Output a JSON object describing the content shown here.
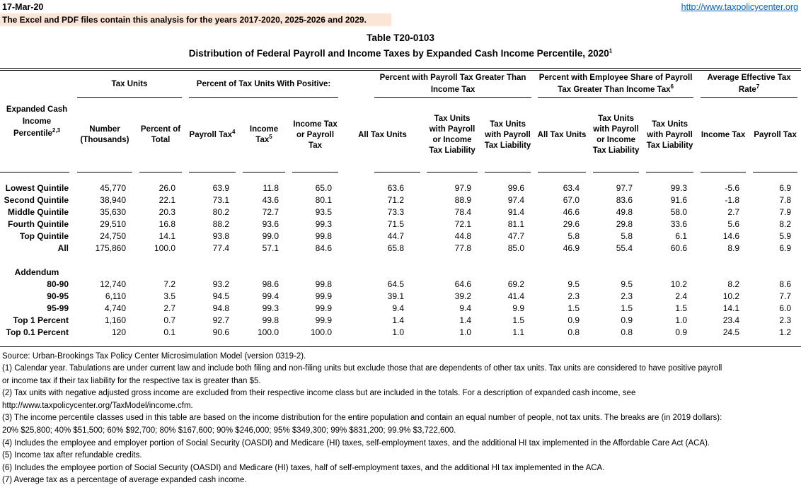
{
  "header": {
    "date": "17-Mar-20",
    "site_url": "http://www.taxpolicycenter.org",
    "banner_note": "The Excel and PDF files contain this analysis for the years 2017-2020, 2025-2026 and 2029.",
    "banner_bg_color": "#FBE5D6",
    "link_color": "#0563C1"
  },
  "title": {
    "line1": "Table T20-0103",
    "line2": "Distribution of Federal Payroll and Income Taxes by Expanded Cash Income Percentile, 2020",
    "line2_sup": "1"
  },
  "table": {
    "row_header": {
      "label": "Expanded Cash Income Percentile",
      "sup": "2,3"
    },
    "groups": [
      {
        "label": "Tax Units",
        "sup": ""
      },
      {
        "label": "Percent of Tax Units With Positive:",
        "sup": ""
      },
      {
        "label": "Percent with Payroll Tax Greater Than Income Tax",
        "sup": ""
      },
      {
        "label": "Percent with Employee Share of Payroll Tax Greater Than Income Tax",
        "sup": "6"
      },
      {
        "label": "Average Effective Tax Rate",
        "sup": "7"
      }
    ],
    "columns": [
      {
        "label": "Number (Thousands)",
        "sup": ""
      },
      {
        "label": "Percent of Total",
        "sup": ""
      },
      {
        "label": "Payroll Tax",
        "sup": "4"
      },
      {
        "label": "Income Tax",
        "sup": "5"
      },
      {
        "label": "Income Tax or Payroll Tax",
        "sup": ""
      },
      {
        "label": "All Tax Units",
        "sup": ""
      },
      {
        "label": "Tax Units with Payroll or Income Tax Liability",
        "sup": ""
      },
      {
        "label": "Tax Units with Payroll Tax Liability",
        "sup": ""
      },
      {
        "label": "All Tax Units",
        "sup": ""
      },
      {
        "label": "Tax Units with Payroll or Income Tax Liability",
        "sup": ""
      },
      {
        "label": "Tax Units with Payroll Tax Liability",
        "sup": ""
      },
      {
        "label": "Income Tax",
        "sup": ""
      },
      {
        "label": "Payroll Tax",
        "sup": ""
      }
    ],
    "main_rows": [
      {
        "label": "Lowest Quintile",
        "values": [
          "45,770",
          "26.0",
          "63.9",
          "11.8",
          "65.0",
          "63.6",
          "97.9",
          "99.6",
          "63.4",
          "97.7",
          "99.3",
          "-5.6",
          "6.9"
        ]
      },
      {
        "label": "Second Quintile",
        "values": [
          "38,940",
          "22.1",
          "73.1",
          "43.6",
          "80.1",
          "71.2",
          "88.9",
          "97.4",
          "67.0",
          "83.6",
          "91.6",
          "-1.8",
          "7.8"
        ]
      },
      {
        "label": "Middle Quintile",
        "values": [
          "35,630",
          "20.3",
          "80.2",
          "72.7",
          "93.5",
          "73.3",
          "78.4",
          "91.4",
          "46.6",
          "49.8",
          "58.0",
          "2.7",
          "7.9"
        ]
      },
      {
        "label": "Fourth Quintile",
        "values": [
          "29,510",
          "16.8",
          "88.2",
          "93.6",
          "99.3",
          "71.5",
          "72.1",
          "81.1",
          "29.6",
          "29.8",
          "33.6",
          "5.6",
          "8.2"
        ]
      },
      {
        "label": "Top Quintile",
        "values": [
          "24,750",
          "14.1",
          "93.8",
          "99.0",
          "99.8",
          "44.7",
          "44.8",
          "47.7",
          "5.8",
          "5.8",
          "6.1",
          "14.6",
          "5.9"
        ]
      },
      {
        "label": "All",
        "values": [
          "175,860",
          "100.0",
          "77.4",
          "57.1",
          "84.6",
          "65.8",
          "77.8",
          "85.0",
          "46.9",
          "55.4",
          "60.6",
          "8.9",
          "6.9"
        ]
      }
    ],
    "addendum_label": "Addendum",
    "addendum_rows": [
      {
        "label": "80-90",
        "values": [
          "12,740",
          "7.2",
          "93.2",
          "98.6",
          "99.8",
          "64.5",
          "64.6",
          "69.2",
          "9.5",
          "9.5",
          "10.2",
          "8.2",
          "8.6"
        ]
      },
      {
        "label": "90-95",
        "values": [
          "6,110",
          "3.5",
          "94.5",
          "99.4",
          "99.9",
          "39.1",
          "39.2",
          "41.4",
          "2.3",
          "2.3",
          "2.4",
          "10.2",
          "7.7"
        ]
      },
      {
        "label": "95-99",
        "values": [
          "4,740",
          "2.7",
          "94.8",
          "99.3",
          "99.9",
          "9.4",
          "9.4",
          "9.9",
          "1.5",
          "1.5",
          "1.5",
          "14.1",
          "6.0"
        ]
      },
      {
        "label": "Top 1 Percent",
        "values": [
          "1,160",
          "0.7",
          "92.7",
          "99.8",
          "99.9",
          "1.4",
          "1.4",
          "1.5",
          "0.9",
          "0.9",
          "1.0",
          "23.4",
          "2.3"
        ]
      },
      {
        "label": "Top 0.1 Percent",
        "values": [
          "120",
          "0.1",
          "90.6",
          "100.0",
          "100.0",
          "1.0",
          "1.0",
          "1.1",
          "0.8",
          "0.8",
          "0.9",
          "24.5",
          "1.2"
        ]
      }
    ]
  },
  "footnotes": [
    "Source: Urban-Brookings Tax Policy Center Microsimulation Model (version 0319-2).",
    "(1) Calendar year. Tabulations are under current law and include both filing and non-filing units but exclude those that are dependents of other tax units.  Tax units are considered to have positive payroll",
    "or income tax if their tax liability for the respective tax is greater than $5.",
    "(2) Tax units with negative adjusted gross income are excluded from their respective income class but are included in the totals. For a description of expanded cash income, see",
    "http://www.taxpolicycenter.org/TaxModel/income.cfm.",
    "(3) The income percentile classes used in this table are based on the income distribution for the entire population and contain an equal number of people, not tax units. The breaks are (in 2019 dollars):",
    "20% $25,800; 40% $51,500; 60% $92,700; 80% $167,600; 90% $246,000; 95% $349,300; 99% $831,200; 99.9% $3,722,600.",
    "(4) Includes the employee and employer portion of Social Security (OASDI) and Medicare (HI) taxes, self-employment taxes, and the additional HI tax implemented in the Affordable Care Act (ACA).",
    "(5) Income tax after refundable credits.",
    "(6) Includes the employee portion of Social Security (OASDI) and Medicare (HI) taxes, half of self-employment taxes, and the additional HI tax implemented in the ACA.",
    "(7) Average tax as a percentage of average expanded cash income."
  ]
}
